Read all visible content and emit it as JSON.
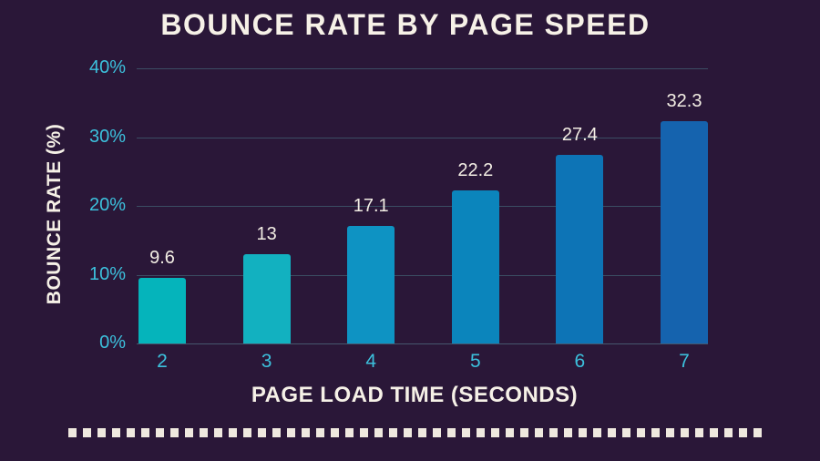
{
  "chart_data": {
    "type": "bar",
    "title": "BOUNCE RATE BY PAGE SPEED",
    "xlabel": "PAGE LOAD TIME (SECONDS)",
    "ylabel": "BOUNCE RATE (%)",
    "categories": [
      "2",
      "3",
      "4",
      "5",
      "6",
      "7"
    ],
    "values": [
      9.6,
      13,
      17.1,
      22.2,
      27.4,
      32.3
    ],
    "value_labels": [
      "9.6",
      "13",
      "17.1",
      "22.2",
      "27.4",
      "32.3"
    ],
    "bar_colors": [
      "#05b4bb",
      "#12b1c0",
      "#0e93c3",
      "#0b85bc",
      "#0d74b6",
      "#1563ae"
    ],
    "ylim": [
      0,
      40
    ],
    "yticks": [
      0,
      10,
      20,
      30,
      40
    ],
    "ytick_labels": [
      "0%",
      "10%",
      "20%",
      "30%",
      "40%"
    ],
    "grid": true,
    "legend": false
  },
  "colors": {
    "background": "#2a1738",
    "title_text": "#f6f1e7",
    "axis_tick_text": "#3cc1dd",
    "value_label_text": "#f3eee4",
    "gridline": "#3b4d63",
    "divider_dash": "#efe9df"
  }
}
